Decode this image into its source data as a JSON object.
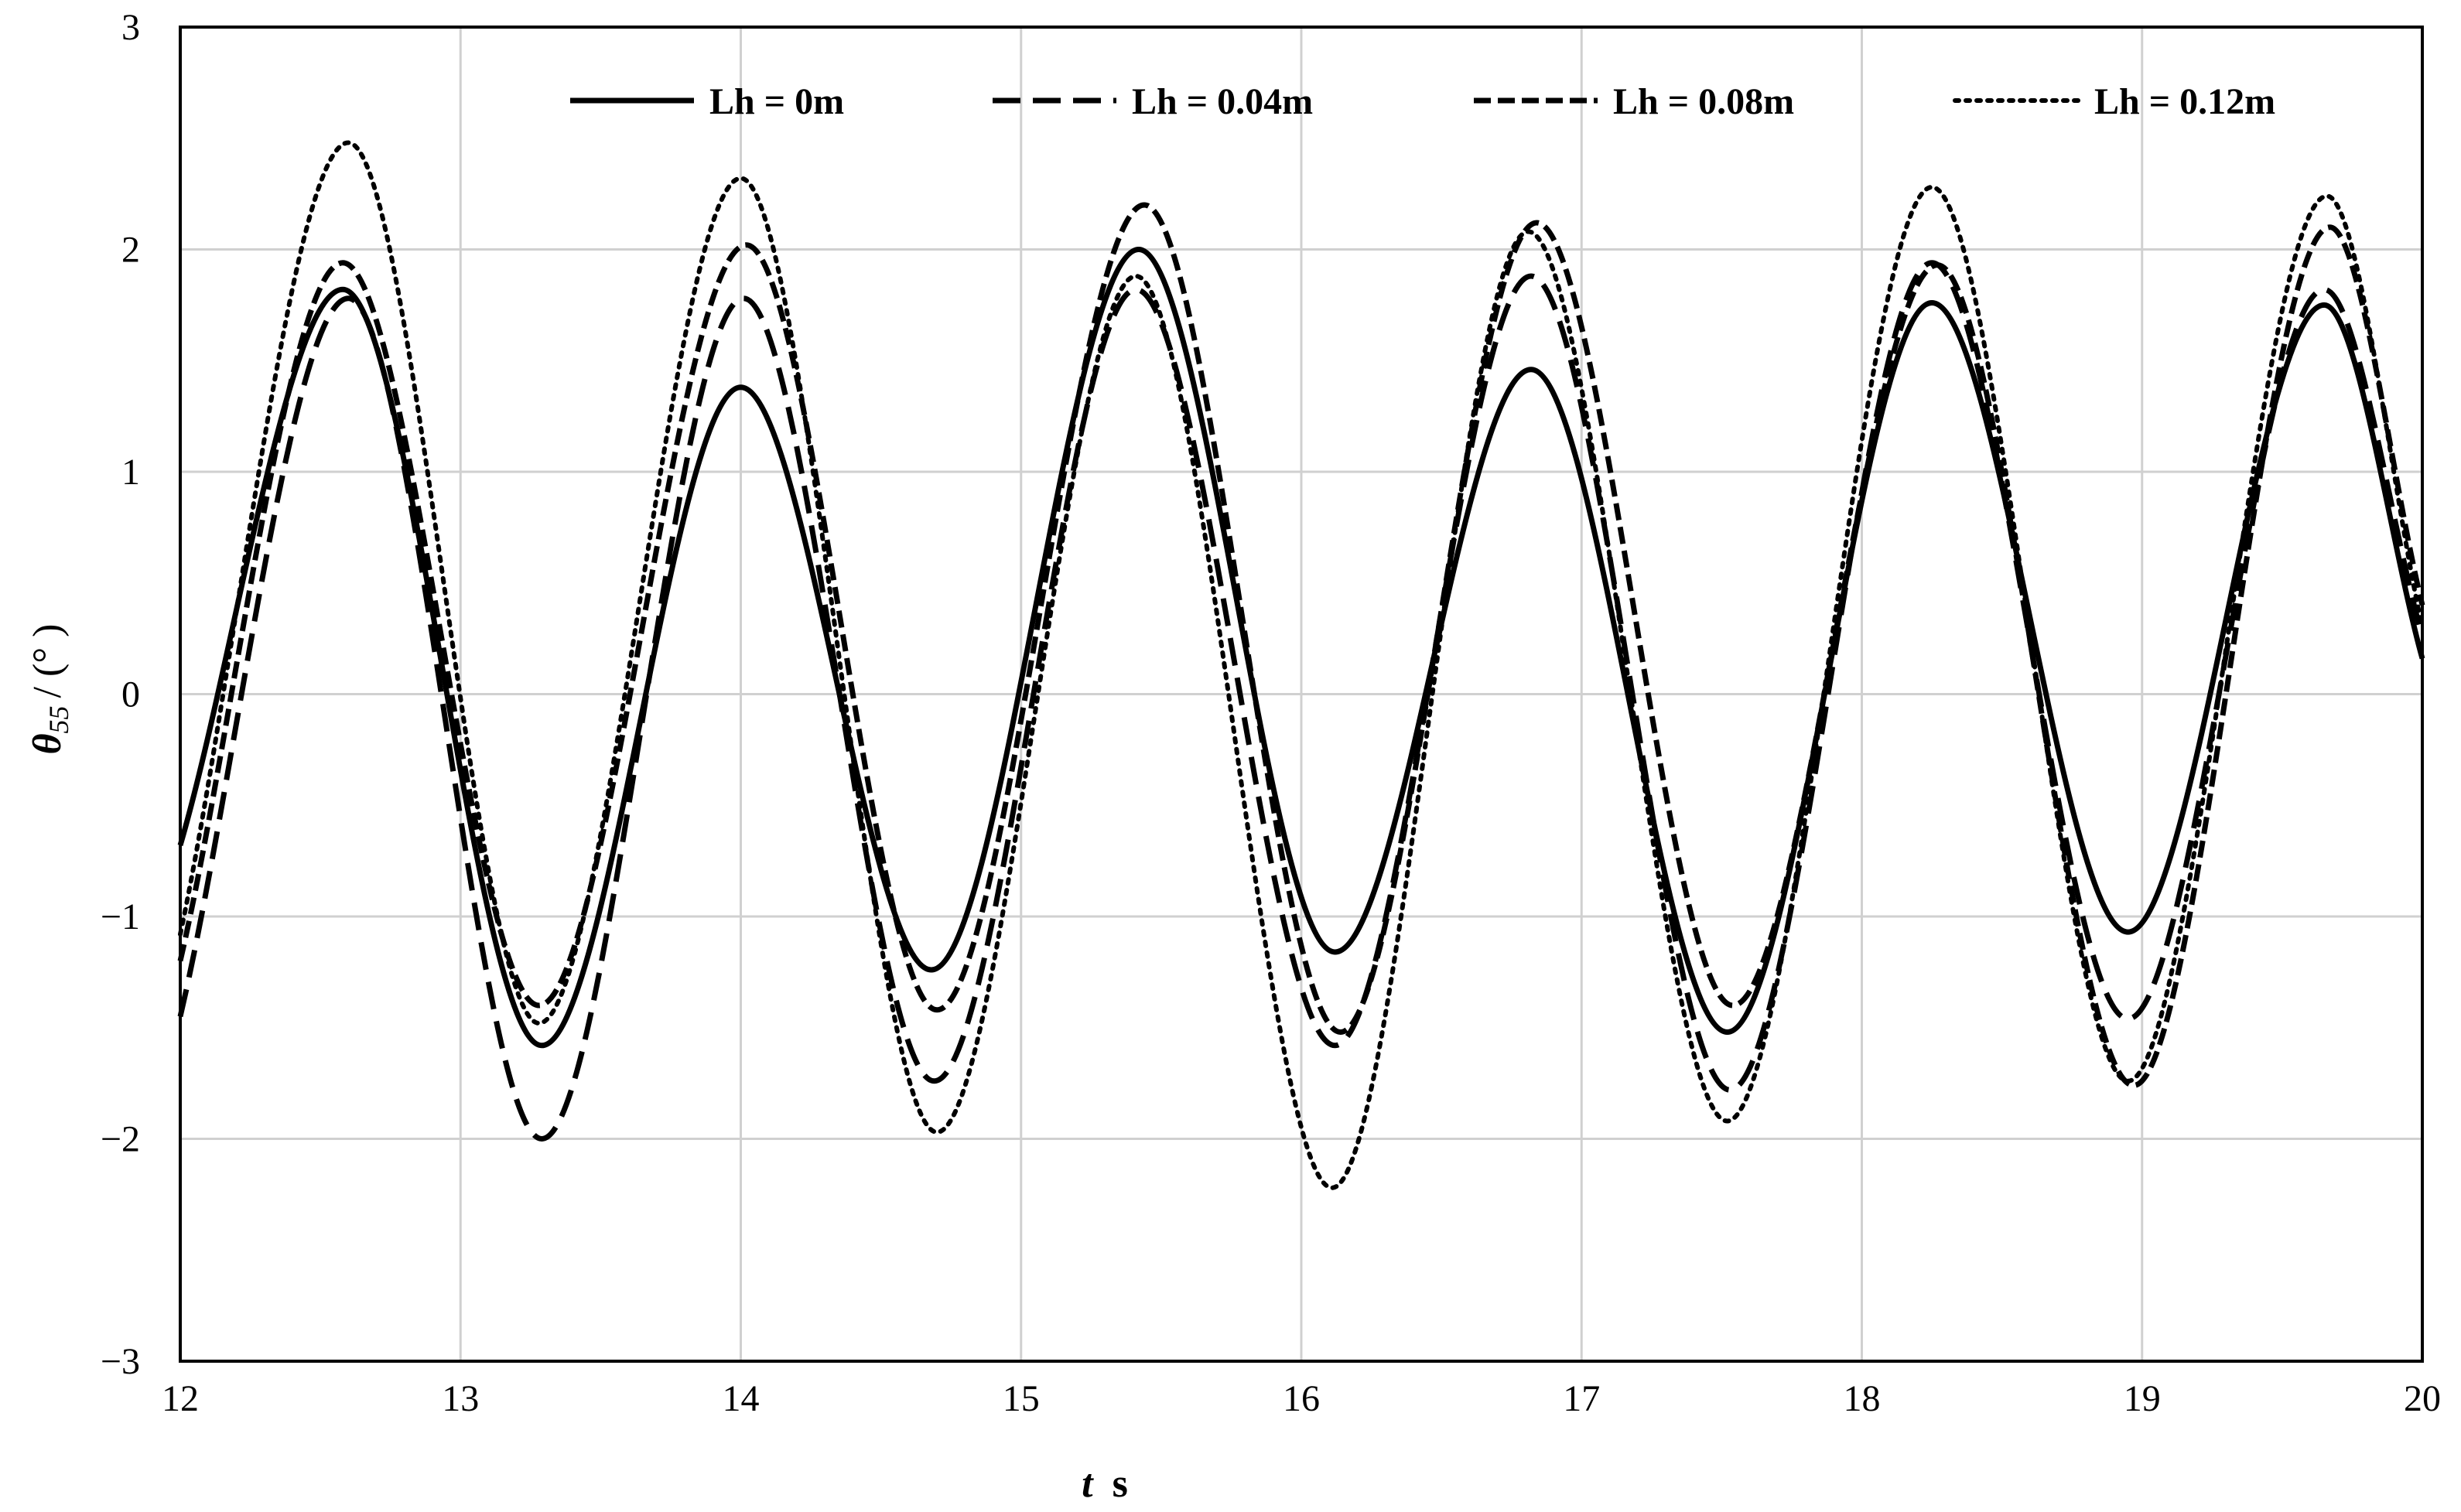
{
  "chart_data": {
    "type": "line",
    "title": "",
    "xlabel": "t / s",
    "xlabel_var": "t",
    "xlabel_unit": "s",
    "ylabel": "θ55 / (°)",
    "ylabel_var": "θ",
    "ylabel_sub": "55",
    "ylabel_unit": "/ (° )",
    "xlim": [
      12,
      20
    ],
    "ylim": [
      -3,
      3
    ],
    "xticks": [
      "12",
      "13",
      "14",
      "15",
      "16",
      "17",
      "18",
      "19",
      "20"
    ],
    "yticks": [
      "−3",
      "−2",
      "−1",
      "0",
      "1",
      "2",
      "3"
    ],
    "grid": true,
    "legend_position": "top",
    "series": [
      {
        "name": "Lh = 0m",
        "style": "solid",
        "color": "#000000",
        "x": [
          12.0,
          12.58,
          13.29,
          14.0,
          14.68,
          15.42,
          16.12,
          16.82,
          17.52,
          18.25,
          18.95,
          19.65,
          20.0
        ],
        "y": [
          -0.68,
          1.82,
          -1.58,
          1.38,
          -1.24,
          2.0,
          -1.16,
          1.46,
          -1.52,
          1.76,
          -1.07,
          1.75,
          0.16
        ]
      },
      {
        "name": "Lh = 0.04m",
        "style": "dashed",
        "color": "#000000",
        "x": [
          12.0,
          12.6,
          13.29,
          14.01,
          14.69,
          15.41,
          16.12,
          16.82,
          17.53,
          18.25,
          18.95,
          19.65,
          20.0
        ],
        "y": [
          -1.45,
          1.78,
          -2.0,
          1.78,
          -1.74,
          1.82,
          -1.58,
          1.88,
          -1.78,
          1.94,
          -1.46,
          1.82,
          0.26
        ]
      },
      {
        "name": "Lh = 0.08m",
        "style": "dashed-fine",
        "color": "#000000",
        "x": [
          12.0,
          12.58,
          13.28,
          14.02,
          14.7,
          15.44,
          16.14,
          16.84,
          17.54,
          18.27,
          18.97,
          19.67,
          20.0
        ],
        "y": [
          -1.2,
          1.94,
          -1.4,
          2.02,
          -1.42,
          2.2,
          -1.52,
          2.12,
          -1.4,
          1.93,
          -1.76,
          2.1,
          0.4
        ]
      },
      {
        "name": "Lh = 0.12m",
        "style": "dotted",
        "color": "#000000",
        "x": [
          12.0,
          12.6,
          13.28,
          14.0,
          14.7,
          15.41,
          16.11,
          16.81,
          17.52,
          18.25,
          18.95,
          19.66,
          20.0
        ],
        "y": [
          -1.08,
          2.48,
          -1.48,
          2.32,
          -1.97,
          1.88,
          -2.22,
          2.08,
          -1.92,
          2.28,
          -1.74,
          2.24,
          0.3
        ]
      }
    ]
  }
}
